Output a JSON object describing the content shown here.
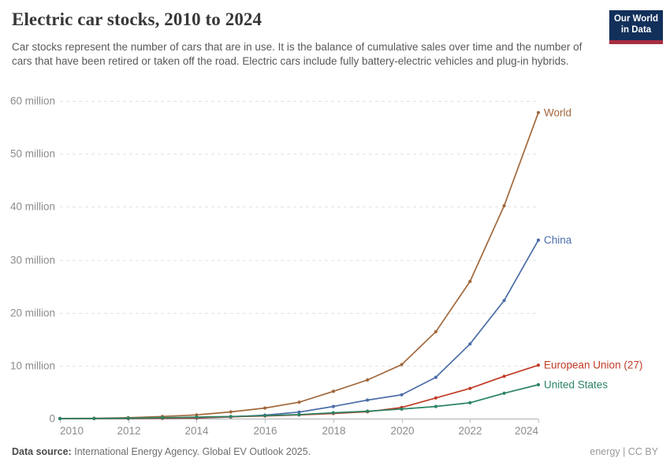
{
  "header": {
    "title": "Electric car stocks, 2010 to 2024",
    "subtitle": "Car stocks represent the number of cars that are in use. It is the balance of cumulative sales over time and the number of cars that have been retired or taken off the road. Electric cars include fully battery-electric vehicles and plug-in hybrids.",
    "logo": {
      "line1": "Our World",
      "line2": "in Data"
    }
  },
  "footer": {
    "datasource_label": "Data source:",
    "datasource_text": "International Energy Agency. Global EV Outlook 2025.",
    "rights": "energy | CC BY"
  },
  "colors": {
    "world": "#a1683c",
    "china": "#4c6ea8",
    "european_union": "#c03b26",
    "united_states": "#2c8465",
    "gridline": "#e3e3e3",
    "axis_line": "#b0b0b0",
    "tick": "#c0c0c0",
    "axis_text": "#8c8c8c",
    "logo_navy": "#12305a",
    "logo_red": "#a72e41"
  },
  "chart_data": {
    "type": "line",
    "title": "Electric car stocks, 2010 to 2024",
    "unit": "million vehicles",
    "x": [
      2010,
      2011,
      2012,
      2013,
      2014,
      2015,
      2016,
      2017,
      2018,
      2019,
      2020,
      2021,
      2022,
      2023,
      2024
    ],
    "series": [
      {
        "name": "World",
        "color": "#a1683c",
        "values": [
          0.02,
          0.06,
          0.18,
          0.4,
          0.7,
          1.26,
          2.0,
          3.1,
          5.15,
          7.3,
          10.2,
          16.4,
          25.9,
          40.2,
          57.8
        ]
      },
      {
        "name": "China",
        "color": "#4c6ea8",
        "values": [
          0.002,
          0.008,
          0.02,
          0.04,
          0.11,
          0.31,
          0.65,
          1.23,
          2.3,
          3.5,
          4.5,
          7.8,
          14.1,
          22.3,
          33.7
        ]
      },
      {
        "name": "European Union (27)",
        "color": "#c03b26",
        "values": [
          0.001,
          0.01,
          0.03,
          0.07,
          0.15,
          0.35,
          0.5,
          0.7,
          0.97,
          1.3,
          2.1,
          3.9,
          5.7,
          8.0,
          10.1
        ]
      },
      {
        "name": "United States",
        "color": "#2c8465",
        "values": [
          0.004,
          0.02,
          0.07,
          0.17,
          0.29,
          0.4,
          0.56,
          0.76,
          1.1,
          1.4,
          1.8,
          2.3,
          3.0,
          4.8,
          6.4
        ]
      }
    ],
    "xticks": [
      2010,
      2012,
      2014,
      2016,
      2018,
      2020,
      2022,
      2024
    ],
    "yticks": [
      0,
      10,
      20,
      30,
      40,
      50,
      60
    ],
    "ytick_labels": [
      "0",
      "10 million",
      "20 million",
      "30 million",
      "40 million",
      "50 million",
      "60 million"
    ],
    "xlim": [
      2010,
      2024
    ],
    "ylim": [
      0,
      60
    ],
    "grid": "horizontal dashed",
    "legend_position": "line-end-labels"
  }
}
